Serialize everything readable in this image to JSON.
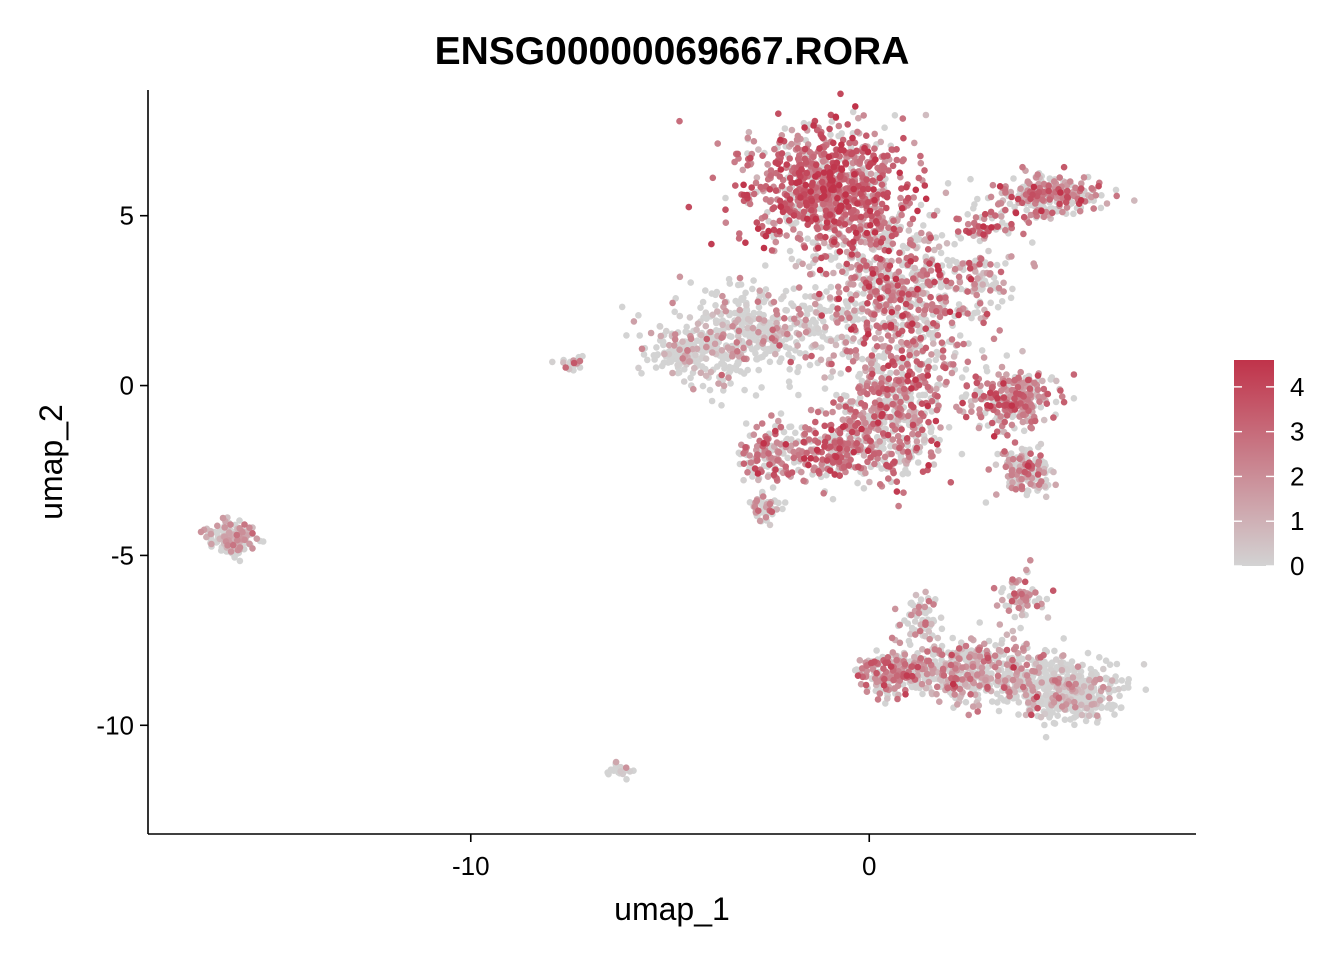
{
  "chart_data": {
    "type": "scatter",
    "title": "ENSG00000069667.RORA",
    "xlabel": "umap_1",
    "ylabel": "umap_2",
    "xlim": [
      -18.1,
      8.2
    ],
    "ylim": [
      -13.2,
      8.7
    ],
    "x_ticks": [
      -10,
      0
    ],
    "y_ticks": [
      5,
      0,
      -5,
      -10
    ],
    "x_tick_labels": [
      "-10",
      "0"
    ],
    "y_tick_labels": [
      "5",
      "0",
      "-5",
      "-10"
    ],
    "grid": false,
    "legend_position": "right",
    "color_scale": {
      "low_color": "#d3d3d3",
      "high_color": "#c0334a",
      "min": 0,
      "max": 4.6,
      "ticks": [
        4,
        3,
        2,
        1,
        0
      ],
      "tick_labels": [
        "4",
        "3",
        "2",
        "1",
        "0"
      ]
    },
    "clusters": [
      {
        "cx": -1.0,
        "cy": 5.8,
        "sx": 1.3,
        "sy": 1.2,
        "n": 950,
        "expr_mean": 2.8,
        "expr_sd": 1.2,
        "zero_frac": 0.18
      },
      {
        "cx": 0.8,
        "cy": 2.8,
        "sx": 1.6,
        "sy": 1.8,
        "n": 750,
        "expr_mean": 2.1,
        "expr_sd": 1.3,
        "zero_frac": 0.38
      },
      {
        "cx": -2.6,
        "cy": 1.6,
        "sx": 1.4,
        "sy": 0.9,
        "n": 380,
        "expr_mean": 1.2,
        "expr_sd": 1.0,
        "zero_frac": 0.65
      },
      {
        "cx": -4.4,
        "cy": 1.0,
        "sx": 0.9,
        "sy": 0.6,
        "n": 200,
        "expr_mean": 1.0,
        "expr_sd": 0.9,
        "zero_frac": 0.72
      },
      {
        "cx": 0.6,
        "cy": -0.7,
        "sx": 0.9,
        "sy": 1.3,
        "n": 420,
        "expr_mean": 2.4,
        "expr_sd": 1.1,
        "zero_frac": 0.3
      },
      {
        "cx": -0.8,
        "cy": -1.9,
        "sx": 1.0,
        "sy": 0.6,
        "n": 260,
        "expr_mean": 2.6,
        "expr_sd": 1.0,
        "zero_frac": 0.25
      },
      {
        "cx": -2.5,
        "cy": -2.1,
        "sx": 0.5,
        "sy": 0.7,
        "n": 110,
        "expr_mean": 2.3,
        "expr_sd": 1.1,
        "zero_frac": 0.3
      },
      {
        "cx": 3.7,
        "cy": -0.5,
        "sx": 0.7,
        "sy": 0.6,
        "n": 240,
        "expr_mean": 2.4,
        "expr_sd": 1.1,
        "zero_frac": 0.3
      },
      {
        "cx": 3.9,
        "cy": -2.5,
        "sx": 0.45,
        "sy": 0.45,
        "n": 140,
        "expr_mean": 1.6,
        "expr_sd": 1.1,
        "zero_frac": 0.5
      },
      {
        "cx": 4.6,
        "cy": 5.6,
        "sx": 0.9,
        "sy": 0.4,
        "n": 260,
        "expr_mean": 2.2,
        "expr_sd": 1.1,
        "zero_frac": 0.35
      },
      {
        "cx": 3.0,
        "cy": 4.7,
        "sx": 0.5,
        "sy": 0.3,
        "n": 50,
        "expr_mean": 2.8,
        "expr_sd": 1.0,
        "zero_frac": 0.2
      },
      {
        "cx": 2.9,
        "cy": 3.1,
        "sx": 0.35,
        "sy": 0.4,
        "n": 40,
        "expr_mean": 1.5,
        "expr_sd": 1.0,
        "zero_frac": 0.5
      },
      {
        "cx": 2.6,
        "cy": -8.4,
        "sx": 1.3,
        "sy": 0.6,
        "n": 500,
        "expr_mean": 1.7,
        "expr_sd": 1.1,
        "zero_frac": 0.48
      },
      {
        "cx": 5.0,
        "cy": -9.0,
        "sx": 0.8,
        "sy": 0.55,
        "n": 420,
        "expr_mean": 0.9,
        "expr_sd": 0.9,
        "zero_frac": 0.7
      },
      {
        "cx": 0.5,
        "cy": -8.5,
        "sx": 0.55,
        "sy": 0.45,
        "n": 160,
        "expr_mean": 2.3,
        "expr_sd": 1.0,
        "zero_frac": 0.35
      },
      {
        "cx": 1.3,
        "cy": -6.9,
        "sx": 0.3,
        "sy": 0.45,
        "n": 60,
        "expr_mean": 1.3,
        "expr_sd": 1.0,
        "zero_frac": 0.55
      },
      {
        "cx": 3.8,
        "cy": -6.2,
        "sx": 0.4,
        "sy": 0.5,
        "n": 60,
        "expr_mean": 2.0,
        "expr_sd": 1.0,
        "zero_frac": 0.4
      },
      {
        "cx": -16.0,
        "cy": -4.5,
        "sx": 0.35,
        "sy": 0.3,
        "n": 200,
        "expr_mean": 1.0,
        "expr_sd": 0.9,
        "zero_frac": 0.6
      },
      {
        "cx": -7.5,
        "cy": 0.65,
        "sx": 0.25,
        "sy": 0.12,
        "n": 22,
        "expr_mean": 1.6,
        "expr_sd": 1.0,
        "zero_frac": 0.5
      },
      {
        "cx": -6.3,
        "cy": -11.3,
        "sx": 0.2,
        "sy": 0.15,
        "n": 25,
        "expr_mean": 0.8,
        "expr_sd": 0.8,
        "zero_frac": 0.7
      },
      {
        "cx": -2.6,
        "cy": -3.6,
        "sx": 0.3,
        "sy": 0.25,
        "n": 45,
        "expr_mean": 1.4,
        "expr_sd": 1.0,
        "zero_frac": 0.55
      }
    ]
  }
}
